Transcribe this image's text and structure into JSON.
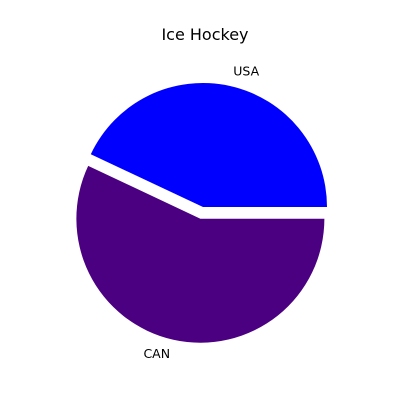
{
  "chart_data": {
    "type": "pie",
    "title": "Ice Hockey",
    "categories": [
      "USA",
      "CAN"
    ],
    "values": [
      43,
      57
    ],
    "colors": [
      "#0000ff",
      "#4b0082"
    ],
    "start_angle_deg": 0,
    "direction": "counterclockwise",
    "exploded": [
      "CAN"
    ],
    "legend": "none"
  }
}
